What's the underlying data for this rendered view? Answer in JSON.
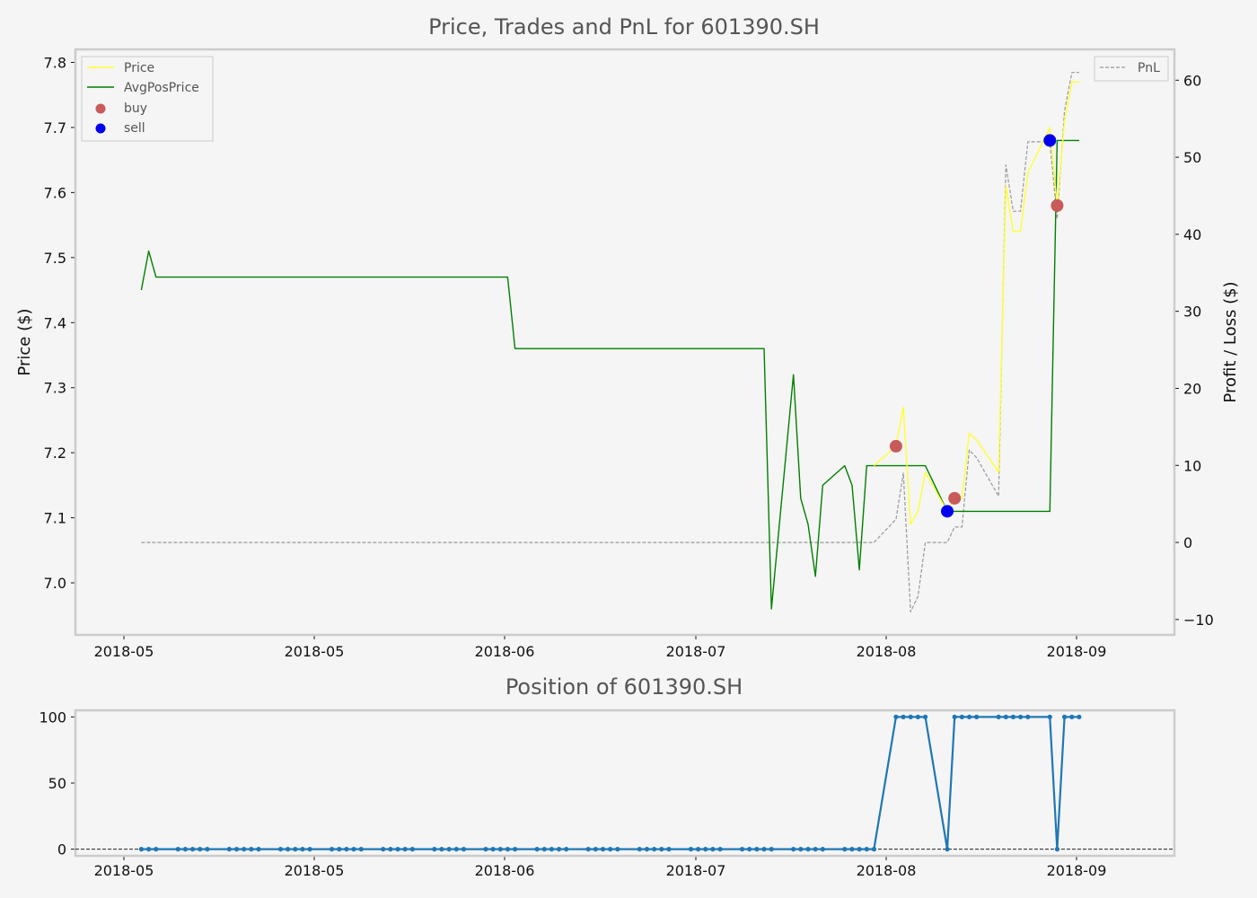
{
  "chart_data": [
    {
      "type": "line",
      "title": "Price, Trades and PnL for 601390.SH",
      "xlabel": "",
      "ylabel": "Price ($)",
      "y2label": "Profit / Loss ($)",
      "xlim": [
        "2018-04-23",
        "2018-09-20"
      ],
      "ylim": [
        6.92,
        7.82
      ],
      "y2lim": [
        -12,
        64
      ],
      "x_tick_labels": [
        "2018-05",
        "2018-05",
        "2018-06",
        "2018-07",
        "2018-08",
        "2018-09"
      ],
      "y_ticks": [
        7.0,
        7.1,
        7.2,
        7.3,
        7.4,
        7.5,
        7.6,
        7.7,
        7.8
      ],
      "y2_ticks": [
        -10,
        0,
        10,
        20,
        30,
        40,
        50,
        60
      ],
      "legend_left": {
        "location": "upper-left",
        "entries": [
          "Price",
          "AvgPosPrice",
          "buy",
          "sell"
        ]
      },
      "legend_right": {
        "location": "upper-right",
        "entries": [
          "PnL"
        ]
      },
      "colors": {
        "price": "#ffff33",
        "avgpos": "#008000",
        "buy": "#c85a5a",
        "sell": "#0000ee",
        "pnl": "#999999"
      },
      "series": [
        {
          "name": "Price",
          "axis": "left",
          "x": [
            "2018-08-10",
            "2018-08-13",
            "2018-08-14",
            "2018-08-15",
            "2018-08-16",
            "2018-08-17",
            "2018-08-20",
            "2018-08-21",
            "2018-08-22",
            "2018-08-23",
            "2018-08-24",
            "2018-08-27",
            "2018-08-28",
            "2018-08-29",
            "2018-08-30",
            "2018-08-31",
            "2018-09-03",
            "2018-09-04",
            "2018-09-05",
            "2018-09-06",
            "2018-09-07"
          ],
          "values": [
            7.18,
            7.21,
            7.27,
            7.09,
            7.11,
            7.17,
            7.11,
            7.13,
            7.13,
            7.23,
            7.22,
            7.17,
            7.61,
            7.54,
            7.54,
            7.63,
            7.7,
            7.58,
            7.71,
            7.77,
            7.77
          ]
        },
        {
          "name": "AvgPosPrice",
          "axis": "left",
          "x": [
            "2018-05-02",
            "2018-05-03",
            "2018-05-04",
            "2018-06-21",
            "2018-06-22",
            "2018-07-26",
            "2018-07-27",
            "2018-07-30",
            "2018-07-31",
            "2018-08-01",
            "2018-08-02",
            "2018-08-03",
            "2018-08-06",
            "2018-08-07",
            "2018-08-08",
            "2018-08-09",
            "2018-08-10",
            "2018-08-17",
            "2018-08-20",
            "2018-09-03",
            "2018-09-04",
            "2018-09-07"
          ],
          "values": [
            7.45,
            7.51,
            7.47,
            7.47,
            7.36,
            7.36,
            6.96,
            7.32,
            7.13,
            7.09,
            7.01,
            7.15,
            7.18,
            7.15,
            7.02,
            7.18,
            7.18,
            7.18,
            7.11,
            7.11,
            7.68,
            7.68
          ]
        },
        {
          "name": "PnL",
          "axis": "right",
          "x": [
            "2018-05-02",
            "2018-08-10",
            "2018-08-13",
            "2018-08-14",
            "2018-08-15",
            "2018-08-16",
            "2018-08-17",
            "2018-08-20",
            "2018-08-21",
            "2018-08-22",
            "2018-08-23",
            "2018-08-24",
            "2018-08-27",
            "2018-08-28",
            "2018-08-29",
            "2018-08-30",
            "2018-08-31",
            "2018-09-03",
            "2018-09-04",
            "2018-09-05",
            "2018-09-06",
            "2018-09-07"
          ],
          "values": [
            0,
            0,
            3,
            9,
            -9,
            -7,
            0,
            0,
            2,
            2,
            12,
            11,
            6,
            49,
            43,
            43,
            52,
            52,
            42,
            56,
            61,
            61
          ]
        }
      ],
      "markers": {
        "buy": [
          {
            "x": "2018-08-13",
            "y": 7.21
          },
          {
            "x": "2018-08-21",
            "y": 7.13
          },
          {
            "x": "2018-09-04",
            "y": 7.58
          }
        ],
        "sell": [
          {
            "x": "2018-08-20",
            "y": 7.11
          },
          {
            "x": "2018-09-03",
            "y": 7.68
          }
        ]
      }
    },
    {
      "type": "line",
      "title": "Position of 601390.SH",
      "xlim": [
        "2018-04-23",
        "2018-09-20"
      ],
      "ylim": [
        -5,
        105
      ],
      "y_ticks": [
        0,
        50,
        100
      ],
      "x_tick_labels": [
        "2018-05",
        "2018-05",
        "2018-06",
        "2018-07",
        "2018-08",
        "2018-09"
      ],
      "colors": {
        "position": "#1f77b4"
      },
      "series": [
        {
          "name": "Position",
          "x": [
            "2018-05-02",
            "2018-08-10",
            "2018-08-13",
            "2018-08-17",
            "2018-08-20",
            "2018-08-21",
            "2018-09-03",
            "2018-09-04",
            "2018-09-05",
            "2018-09-07"
          ],
          "values": [
            0,
            0,
            100,
            100,
            0,
            100,
            100,
            0,
            100,
            100
          ]
        }
      ]
    }
  ]
}
